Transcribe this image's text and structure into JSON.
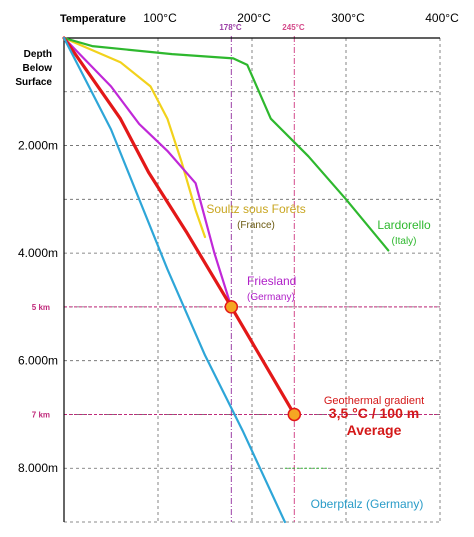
{
  "chart_data": {
    "type": "line",
    "title": "",
    "x_axis": {
      "label": "Temperature",
      "position": "top",
      "range_c": [
        0,
        400
      ],
      "gridlines_c": [
        0,
        100,
        200,
        300,
        400
      ],
      "tick_labels": [
        "100°C",
        "200°C",
        "300°C",
        "400°C"
      ],
      "tick_values": [
        100,
        200,
        300,
        400
      ],
      "grid": "dashed"
    },
    "y_axis": {
      "label_lines": [
        "Depth",
        "Below",
        "Surface"
      ],
      "inverted": true,
      "range_m": [
        0,
        9000
      ],
      "gridlines_m": [
        1000,
        2000,
        3000,
        4000,
        5000,
        6000,
        7000,
        8000,
        9000
      ],
      "tick_labels": [
        {
          "depth": 2000,
          "text": "2.000m"
        },
        {
          "depth": 4000,
          "text": "4.000m"
        },
        {
          "depth": 6000,
          "text": "6.000m"
        },
        {
          "depth": 8000,
          "text": "8.000m"
        }
      ],
      "highlighted_ticks": [
        {
          "depth": 5000,
          "text": "5 km"
        },
        {
          "depth": 7000,
          "text": "7 km"
        }
      ]
    },
    "reference_temperatures": [
      {
        "temp": 178,
        "text": "178°C",
        "color": "#9b3fa6"
      },
      {
        "temp": 245,
        "text": "245°C",
        "color": "#d44a8a"
      }
    ],
    "series": [
      {
        "name": "Soultz sous Forêts",
        "label_lines": [
          "Soultz sous Forêts",
          "(France)"
        ],
        "color": "#f2d21c",
        "points": [
          [
            0,
            0
          ],
          [
            60,
            450
          ],
          [
            92,
            900
          ],
          [
            110,
            1500
          ],
          [
            125,
            2300
          ],
          [
            140,
            3200
          ],
          [
            150,
            3700
          ]
        ]
      },
      {
        "name": "Lardorello",
        "label_lines": [
          "Lardorello",
          "(Italy)"
        ],
        "color": "#2eb82e",
        "points": [
          [
            0,
            0
          ],
          [
            30,
            150
          ],
          [
            115,
            300
          ],
          [
            180,
            380
          ],
          [
            195,
            500
          ],
          [
            205,
            900
          ],
          [
            220,
            1500
          ],
          [
            260,
            2200
          ],
          [
            300,
            3000
          ],
          [
            345,
            3950
          ]
        ]
      },
      {
        "name": "Friesland",
        "label_lines": [
          "Friesland",
          "(Germany)"
        ],
        "color": "#c028d8",
        "points": [
          [
            0,
            0
          ],
          [
            50,
            900
          ],
          [
            80,
            1600
          ],
          [
            110,
            2100
          ],
          [
            140,
            2700
          ],
          [
            160,
            4000
          ],
          [
            178,
            5000
          ]
        ]
      },
      {
        "name": "Geothermal gradient",
        "label_lines": [
          "Geothermal gradient",
          "3,5 °C / 100 m",
          "Average"
        ],
        "color": "#e31818",
        "points": [
          [
            0,
            0
          ],
          [
            60,
            1500
          ],
          [
            90,
            2500
          ],
          [
            130,
            3600
          ],
          [
            178,
            5000
          ],
          [
            245,
            7000
          ]
        ]
      },
      {
        "name": "Oberpfalz (Germany)",
        "label_lines": [
          "Oberpfalz (Germany)"
        ],
        "color": "#2ea6d8",
        "points": [
          [
            0,
            0
          ],
          [
            50,
            1700
          ],
          [
            110,
            4300
          ],
          [
            150,
            5900
          ],
          [
            190,
            7300
          ],
          [
            235,
            9000
          ]
        ]
      }
    ],
    "markers": [
      {
        "temp": 178,
        "depth": 5000,
        "color": "#f5a623"
      },
      {
        "temp": 245,
        "depth": 7000,
        "color": "#f5a623"
      }
    ],
    "extra_segment": {
      "color": "#2eb82e",
      "from": [
        235,
        8000
      ],
      "to": [
        280,
        8000
      ]
    }
  }
}
